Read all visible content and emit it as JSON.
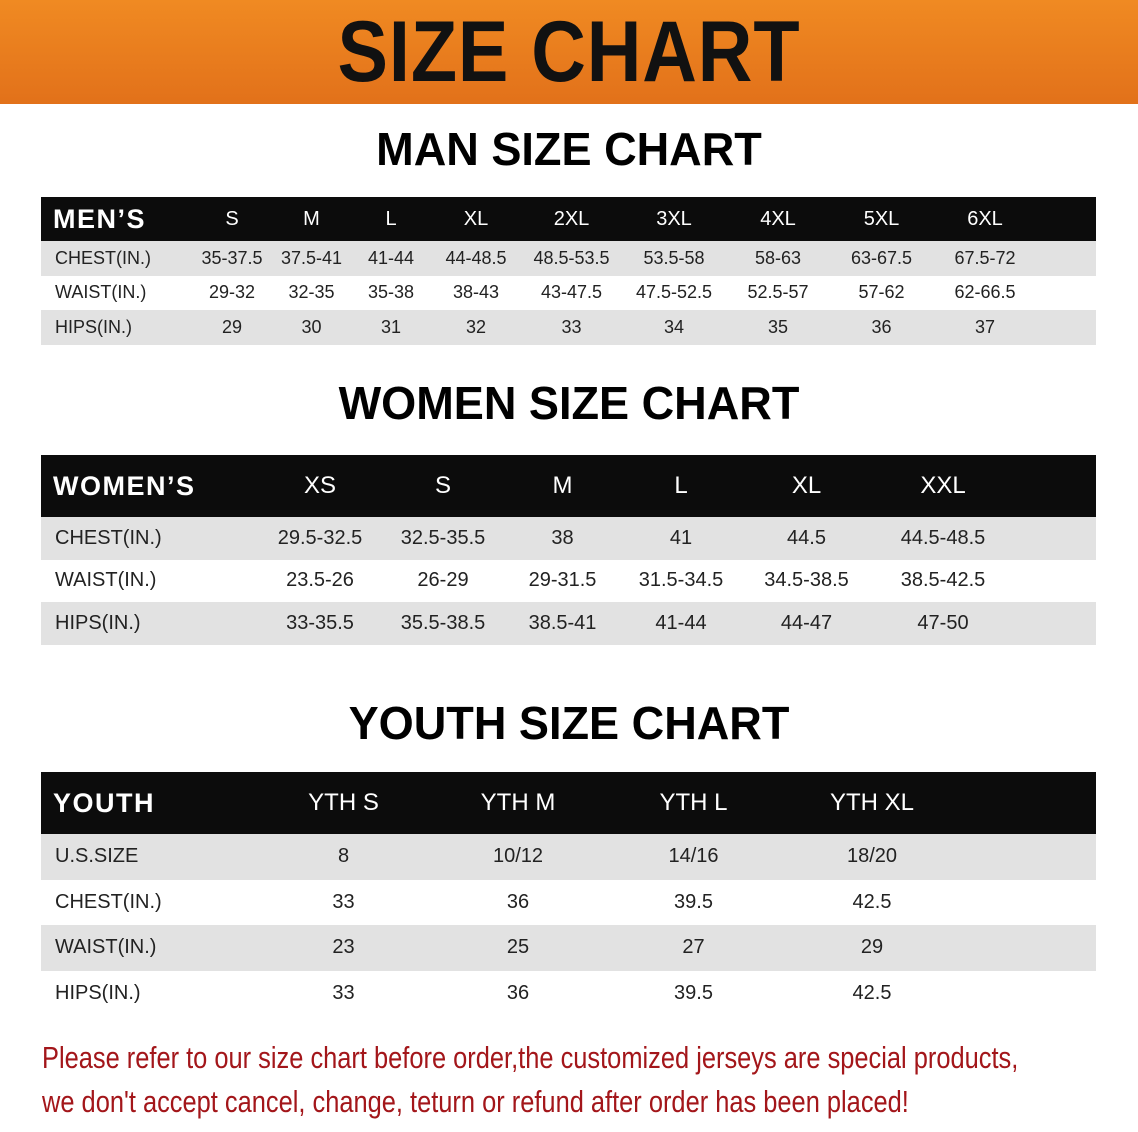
{
  "banner_title": "SIZE CHART",
  "men": {
    "title": "MAN SIZE CHART",
    "header": [
      "MEN’S",
      "S",
      "M",
      "L",
      "XL",
      "2XL",
      "3XL",
      "4XL",
      "5XL",
      "6XL"
    ],
    "rows": [
      [
        "CHEST(IN.)",
        "35-37.5",
        "37.5-41",
        "41-44",
        "44-48.5",
        "48.5-53.5",
        "53.5-58",
        "58-63",
        "63-67.5",
        "67.5-72"
      ],
      [
        "WAIST(IN.)",
        "29-32",
        "32-35",
        "35-38",
        "38-43",
        "43-47.5",
        "47.5-52.5",
        "52.5-57",
        "57-62",
        "62-66.5"
      ],
      [
        "HIPS(IN.)",
        "29",
        "30",
        "31",
        "32",
        "33",
        "34",
        "35",
        "36",
        "37"
      ]
    ]
  },
  "women": {
    "title": "WOMEN SIZE CHART",
    "header": [
      "WOMEN’S",
      "XS",
      "S",
      "M",
      "L",
      "XL",
      "XXL"
    ],
    "rows": [
      [
        "CHEST(IN.)",
        "29.5-32.5",
        "32.5-35.5",
        "38",
        "41",
        "44.5",
        "44.5-48.5"
      ],
      [
        "WAIST(IN.)",
        "23.5-26",
        "26-29",
        "29-31.5",
        "31.5-34.5",
        "34.5-38.5",
        "38.5-42.5"
      ],
      [
        "HIPS(IN.)",
        "33-35.5",
        "35.5-38.5",
        "38.5-41",
        "41-44",
        "44-47",
        "47-50"
      ]
    ]
  },
  "youth": {
    "title": "YOUTH SIZE CHART",
    "header": [
      "YOUTH",
      "YTH S",
      "YTH M",
      "YTH L",
      "YTH XL"
    ],
    "rows": [
      [
        "U.S.SIZE",
        "8",
        "10/12",
        "14/16",
        "18/20"
      ],
      [
        "CHEST(IN.)",
        "33",
        "36",
        "39.5",
        "42.5"
      ],
      [
        "WAIST(IN.)",
        "23",
        "25",
        "27",
        "29"
      ],
      [
        "HIPS(IN.)",
        "33",
        "36",
        "39.5",
        "42.5"
      ]
    ]
  },
  "note": {
    "line1": "Please refer to our size chart before order,the customized jerseys are special products,",
    "line2": "we don't accept cancel, change, teturn or refund after order has been placed!"
  },
  "colors": {
    "banner": "#e97a1d",
    "header_row": "#0c0c0c",
    "stripe": "#e2e2e2",
    "note": "#a3161a"
  }
}
